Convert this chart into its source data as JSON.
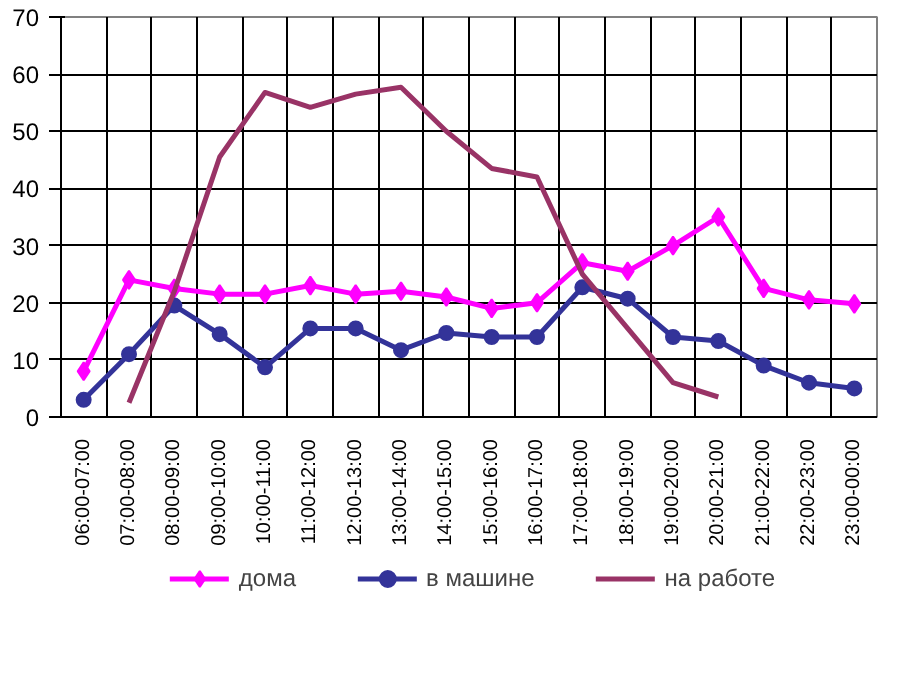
{
  "chart_data": {
    "type": "line",
    "categories": [
      "06:00-07:00",
      "07:00-08:00",
      "08:00-09:00",
      "09:00-10:00",
      "10:00-11:00",
      "11:00-12:00",
      "12:00-13:00",
      "13:00-14:00",
      "14:00-15:00",
      "15:00-16:00",
      "16:00-17:00",
      "17:00-18:00",
      "18:00-19:00",
      "19:00-20:00",
      "20:00-21:00",
      "21:00-22:00",
      "22:00-23:00",
      "23:00-00:00"
    ],
    "series": [
      {
        "name": "дома",
        "color": "#ff00ff",
        "marker": "diamond",
        "values": [
          8,
          24,
          22.5,
          21.5,
          21.5,
          23,
          21.5,
          22,
          21,
          19,
          20,
          27,
          25.5,
          30,
          35,
          22.5,
          20.5,
          19.8
        ]
      },
      {
        "name": "в машине",
        "color": "#333399",
        "marker": "circle",
        "values": [
          3,
          11,
          19.5,
          14.5,
          8.7,
          15.5,
          15.5,
          11.7,
          14.7,
          14,
          14,
          22.7,
          20.7,
          14,
          13.3,
          9,
          6,
          5
        ]
      },
      {
        "name": "на работе",
        "color": "#993366",
        "marker": "none",
        "values": [
          null,
          2.5,
          22,
          45.5,
          56.8,
          54.2,
          56.5,
          57.7,
          50,
          43.5,
          42,
          25,
          15.5,
          6,
          3.5,
          null,
          null,
          null
        ]
      }
    ],
    "ylim": [
      0,
      70
    ],
    "yticks": [
      0,
      10,
      20,
      30,
      40,
      50,
      60,
      70
    ],
    "grid": true,
    "legend": "bottom"
  }
}
